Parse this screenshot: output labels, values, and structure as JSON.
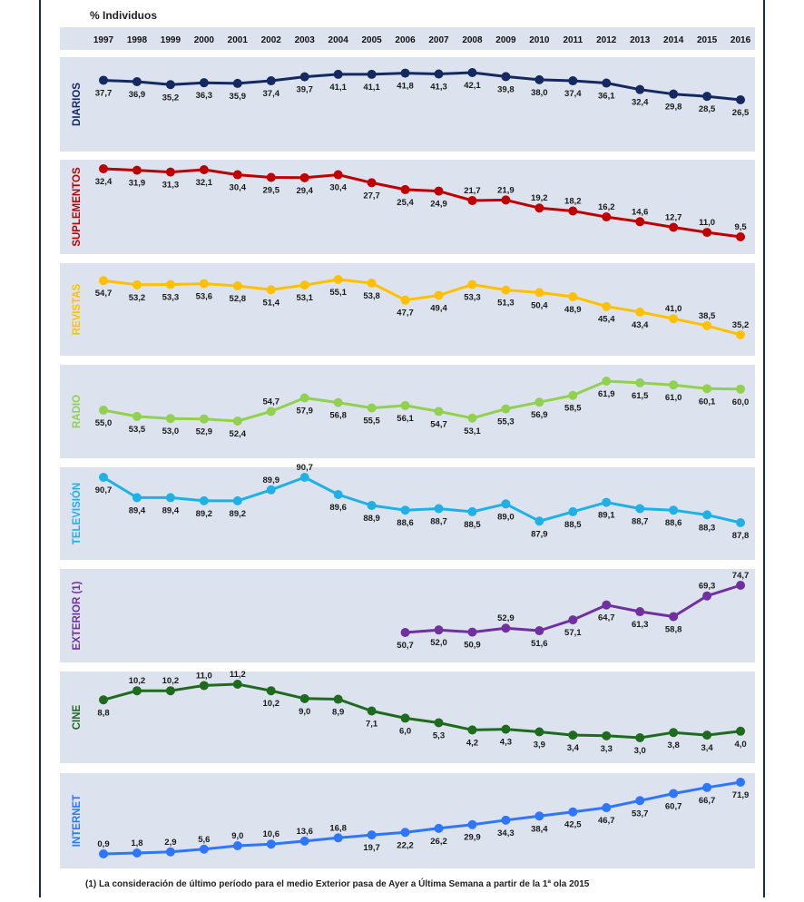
{
  "unit_label": "% Individuos",
  "footnote": "(1) La consideración de último período  para el medio Exterior pasa de Ayer a Última Semana a partir de la 1ª ola 2015",
  "chart_data": {
    "type": "line",
    "title": "% Individuos",
    "categories": [
      "1997",
      "1998",
      "1999",
      "2000",
      "2001",
      "2002",
      "2003",
      "2004",
      "2005",
      "2006",
      "2007",
      "2008",
      "2009",
      "2010",
      "2011",
      "2012",
      "2013",
      "2014",
      "2015",
      "2016"
    ],
    "series": [
      {
        "name": "DIARIOS",
        "color": "#14295f",
        "values": [
          37.7,
          36.9,
          35.2,
          36.3,
          35.9,
          37.4,
          39.7,
          41.1,
          41.1,
          41.8,
          41.3,
          42.1,
          39.8,
          38.0,
          37.4,
          36.1,
          32.4,
          29.8,
          28.5,
          26.5
        ],
        "labels": [
          "37,7",
          "36,9",
          "35,2",
          "36,3",
          "35,9",
          "37,4",
          "39,7",
          "41,1",
          "41,1",
          "41,8",
          "41,3",
          "42,1",
          "39,8",
          "38,0",
          "37,4",
          "36,1",
          "32,4",
          "29,8",
          "28,5",
          "26,5"
        ]
      },
      {
        "name": "SUPLEMENTOS",
        "color": "#c00000",
        "values": [
          32.4,
          31.9,
          31.3,
          32.1,
          30.4,
          29.5,
          29.4,
          30.4,
          27.7,
          25.4,
          24.9,
          21.7,
          21.9,
          19.2,
          18.2,
          16.2,
          14.6,
          12.7,
          11.0,
          9.5
        ],
        "labels": [
          "32,4",
          "31,9",
          "31,3",
          "32,1",
          "30,4",
          "29,5",
          "29,4",
          "30,4",
          "27,7",
          "25,4",
          "24,9",
          "21,7",
          "21,9",
          "19,2",
          "18,2",
          "16,2",
          "14,6",
          "12,7",
          "11,0",
          "9,5"
        ]
      },
      {
        "name": "REVISTAS",
        "color": "#ffc000",
        "values": [
          54.7,
          53.2,
          53.3,
          53.6,
          52.8,
          51.4,
          53.1,
          55.1,
          53.8,
          47.7,
          49.4,
          53.3,
          51.3,
          50.4,
          48.9,
          45.4,
          43.4,
          41.0,
          38.5,
          35.2
        ],
        "labels": [
          "54,7",
          "53,2",
          "53,3",
          "53,6",
          "52,8",
          "51,4",
          "53,1",
          "55,1",
          "53,8",
          "47,7",
          "49,4",
          "53,3",
          "51,3",
          "50,4",
          "48,9",
          "45,4",
          "43,4",
          "41,0",
          "38,5",
          "35,2"
        ]
      },
      {
        "name": "RADIO",
        "color": "#92d050",
        "values": [
          55.0,
          53.5,
          53.0,
          52.9,
          52.4,
          54.7,
          57.9,
          56.8,
          55.5,
          56.1,
          54.7,
          53.1,
          55.3,
          56.9,
          58.5,
          61.9,
          61.5,
          61.0,
          60.1,
          60.0
        ],
        "labels": [
          "55,0",
          "53,5",
          "53,0",
          "52,9",
          "52,4",
          "54,7",
          "57,9",
          "56,8",
          "55,5",
          "56,1",
          "54,7",
          "53,1",
          "55,3",
          "56,9",
          "58,5",
          "61,9",
          "61,5",
          "61,0",
          "60,1",
          "60,0"
        ]
      },
      {
        "name": "TELEVISIÓN",
        "color": "#1fb1e6",
        "values": [
          90.7,
          89.4,
          89.4,
          89.2,
          89.2,
          89.9,
          90.7,
          89.6,
          88.9,
          88.6,
          88.7,
          88.5,
          89.0,
          87.9,
          88.5,
          89.1,
          88.7,
          88.6,
          88.3,
          87.8
        ],
        "labels": [
          "90,7",
          "89,4",
          "89,4",
          "89,2",
          "89,2",
          "89,9",
          "90,7",
          "89,6",
          "88,9",
          "88,6",
          "88,7",
          "88,5",
          "89,0",
          "87,9",
          "88,5",
          "89,1",
          "88,7",
          "88,6",
          "88,3",
          "87,8"
        ]
      },
      {
        "name": "EXTERIOR (1)",
        "color": "#7030a0",
        "values": [
          null,
          null,
          null,
          null,
          null,
          null,
          null,
          null,
          null,
          50.7,
          52.0,
          50.9,
          52.9,
          51.6,
          57.1,
          64.7,
          61.3,
          58.8,
          69.3,
          74.7
        ],
        "labels": [
          "",
          "",
          "",
          "",
          "",
          "",
          "",
          "",
          "",
          "50,7",
          "52,0",
          "50,9",
          "52,9",
          "51,6",
          "57,1",
          "64,7",
          "61,3",
          "58,8",
          "69,3",
          "74,7"
        ]
      },
      {
        "name": "CINE",
        "color": "#1e6b1e",
        "values": [
          8.8,
          10.2,
          10.2,
          11.0,
          11.2,
          10.2,
          9.0,
          8.9,
          7.1,
          6.0,
          5.3,
          4.2,
          4.3,
          3.9,
          3.4,
          3.3,
          3.0,
          3.8,
          3.4,
          4.0
        ],
        "labels": [
          "8,8",
          "10,2",
          "10,2",
          "11,0",
          "11,2",
          "10,2",
          "9,0",
          "8,9",
          "7,1",
          "6,0",
          "5,3",
          "4,2",
          "4,3",
          "3,9",
          "3,4",
          "3,3",
          "3,0",
          "3,8",
          "3,4",
          "4,0"
        ]
      },
      {
        "name": "INTERNET",
        "color": "#2e75ff",
        "values": [
          0.9,
          1.8,
          2.9,
          5.6,
          9.0,
          10.6,
          13.6,
          16.8,
          19.7,
          22.2,
          26.2,
          29.9,
          34.3,
          38.4,
          42.5,
          46.7,
          53.7,
          60.7,
          66.7,
          71.9
        ],
        "labels": [
          "0,9",
          "1,8",
          "2,9",
          "5,6",
          "9,0",
          "10,6",
          "13,6",
          "16,8",
          "19,7",
          "22,2",
          "26,2",
          "29,9",
          "34,3",
          "38,4",
          "42,5",
          "46,7",
          "53,7",
          "60,7",
          "66,7",
          "71,9"
        ]
      }
    ]
  }
}
